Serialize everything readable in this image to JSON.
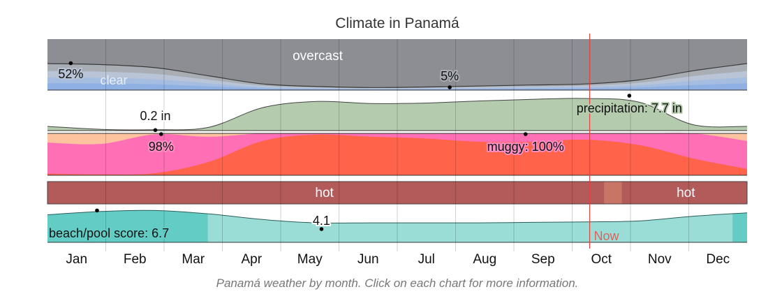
{
  "title": "Climate in Panamá",
  "caption": "Panamá weather by month. Click on each chart for more information.",
  "now_label": "Now",
  "chart_data": {
    "type": "area",
    "title": "Climate in Panamá",
    "months": [
      "Jan",
      "Feb",
      "Mar",
      "Apr",
      "May",
      "Jun",
      "Jul",
      "Aug",
      "Sep",
      "Oct",
      "Nov",
      "Dec"
    ],
    "now_month_position": 9.3,
    "cloud_cover": {
      "labels": {
        "overcast": "overcast",
        "clear": "clear"
      },
      "annotations": [
        {
          "text": "52%",
          "month": 0.4,
          "value": 52
        },
        {
          "text": "5%",
          "month": 6.9,
          "value": 5
        }
      ],
      "clear_percent": [
        52,
        50,
        44,
        28,
        12,
        7,
        5,
        6,
        8,
        10,
        12,
        20,
        38,
        52
      ]
    },
    "precipitation": {
      "unit": "in",
      "annotations": [
        {
          "text": "0.2 in",
          "month": 1.85,
          "value": 0.2
        },
        {
          "text": "precipitation: 7.7 in",
          "month": 9.98,
          "value": 7.7
        }
      ],
      "values_in": [
        1.0,
        0.3,
        0.2,
        0.8,
        5.5,
        7.0,
        6.5,
        6.6,
        7.1,
        7.5,
        7.7,
        6.8,
        1.4,
        1.0
      ]
    },
    "humidity": {
      "annotations": [
        {
          "text": "98%",
          "month": 1.95,
          "value": 98
        },
        {
          "text": "muggy: 100%",
          "month": 8.2,
          "value": 100
        }
      ],
      "muggy_percent": [
        78,
        75,
        98,
        92,
        100,
        100,
        100,
        100,
        100,
        100,
        100,
        100,
        100,
        82
      ],
      "oppressive_percent": [
        4,
        2,
        5,
        32,
        82,
        97,
        92,
        88,
        80,
        80,
        85,
        72,
        40,
        15
      ],
      "colors": {
        "dry": "#ffffff",
        "humid": "#fdc39e",
        "muggy": "#ff6fb5",
        "oppressive": "#ff6349"
      }
    },
    "temperature": {
      "segments": [
        {
          "label": "hot",
          "from_month": 0,
          "to_month": 9.55,
          "color": "#b35a5a"
        },
        {
          "label": "",
          "from_month": 9.55,
          "to_month": 9.85,
          "color": "#c97565"
        },
        {
          "label": "hot",
          "from_month": 9.85,
          "to_month": 12,
          "color": "#b35a5a"
        }
      ]
    },
    "beach_pool": {
      "annotations": [
        {
          "text": "beach/pool score: 6.7",
          "month": 0.85,
          "value": 6.7
        },
        {
          "text": "4.1",
          "month": 4.7,
          "value": 4.1
        }
      ],
      "best_ranges": [
        {
          "from_month": 0,
          "to_month": 2.75
        },
        {
          "from_month": 11.75,
          "to_month": 12
        }
      ],
      "scores": [
        5.8,
        6.5,
        6.7,
        6.0,
        4.8,
        4.1,
        4.1,
        4.1,
        4.1,
        4.2,
        4.3,
        4.5,
        5.5,
        6.2
      ]
    }
  }
}
